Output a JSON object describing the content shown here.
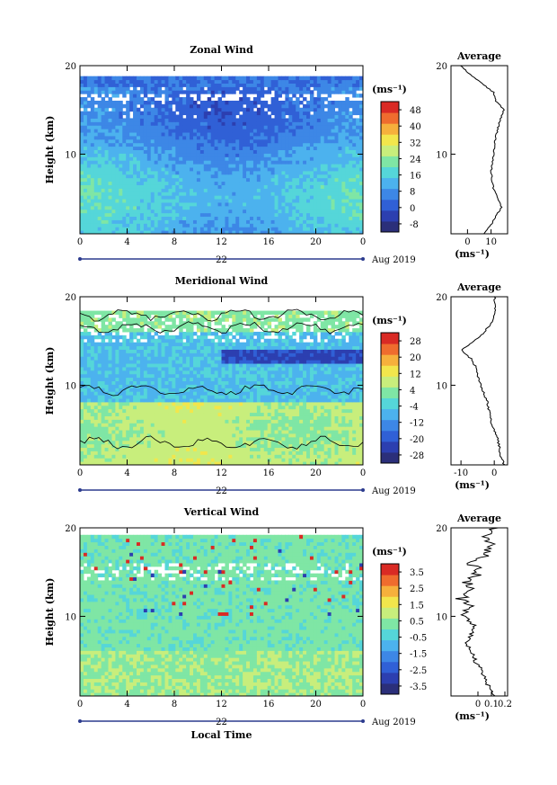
{
  "chart_data": [
    {
      "type": "heatmap",
      "title": "Zonal Wind",
      "ylabel": "Height (km)",
      "yticks": [
        "20",
        "10"
      ],
      "ylim": [
        1,
        20
      ],
      "xticks": [
        "0",
        "4",
        "8",
        "12",
        "16",
        "20",
        "0"
      ],
      "xlim": [
        0,
        24
      ],
      "day_label": "22",
      "date_label": "Aug 2019",
      "colorbar_unit": "(ms⁻¹)",
      "colorbar_ticks": [
        "48",
        "40",
        "32",
        "24",
        "16",
        "8",
        "0",
        "-8"
      ],
      "colorbar_range": [
        -12,
        52
      ],
      "colors": [
        "#2b2f7a",
        "#2c3fb0",
        "#3060d6",
        "#3d87e6",
        "#4cb2ee",
        "#55d6d9",
        "#7fe6a5",
        "#c8ee7c",
        "#f2e64c",
        "#f6b03c",
        "#ef6c2e",
        "#d92a24"
      ],
      "profile": {
        "title": "Average",
        "xlabel": "(ms⁻¹)",
        "xticks": [
          "0",
          "10"
        ],
        "xlim": [
          -7,
          17
        ],
        "yticks": [
          "20",
          "10"
        ],
        "heights": [
          1,
          2,
          3,
          4,
          5,
          6,
          7,
          8,
          9,
          10,
          11,
          12,
          13,
          14,
          15,
          16,
          17,
          18,
          19,
          20
        ],
        "values": [
          7,
          10,
          12,
          14.5,
          13,
          11,
          10.5,
          10,
          10.5,
          11,
          11.5,
          12,
          13,
          14,
          15.5,
          12,
          11,
          6,
          1,
          -3
        ]
      }
    },
    {
      "type": "heatmap",
      "title": "Meridional Wind",
      "ylabel": "Height (km)",
      "yticks": [
        "20",
        "10"
      ],
      "ylim": [
        1,
        20
      ],
      "xticks": [
        "0",
        "4",
        "8",
        "12",
        "16",
        "20",
        "0"
      ],
      "xlim": [
        0,
        24
      ],
      "day_label": "22",
      "date_label": "Aug 2019",
      "colorbar_unit": "(ms⁻¹)",
      "colorbar_ticks": [
        "28",
        "20",
        "12",
        "4",
        "-4",
        "-12",
        "-20",
        "-28"
      ],
      "colorbar_range": [
        -32,
        32
      ],
      "colors": [
        "#2b2f7a",
        "#2c3fb0",
        "#3060d6",
        "#3d87e6",
        "#4cb2ee",
        "#55d6d9",
        "#7fe6a5",
        "#c8ee7c",
        "#f2e64c",
        "#f6b03c",
        "#ef6c2e",
        "#d92a24"
      ],
      "profile": {
        "title": "Average",
        "xlabel": "(ms⁻¹)",
        "xticks": [
          "-10",
          "0"
        ],
        "xlim": [
          -13,
          4
        ],
        "yticks": [
          "20",
          "10"
        ],
        "heights": [
          1,
          2,
          3,
          4,
          5,
          6,
          7,
          8,
          9,
          10,
          11,
          12,
          13,
          14,
          15,
          16,
          17,
          18,
          19,
          20
        ],
        "values": [
          3,
          2,
          1.5,
          1,
          0,
          -1,
          -1.5,
          -2,
          -3,
          -4,
          -5,
          -5.5,
          -7,
          -10,
          -6,
          -3,
          -1,
          0,
          0.5,
          0
        ]
      }
    },
    {
      "type": "heatmap",
      "title": "Vertical Wind",
      "ylabel": "Height (km)",
      "yticks": [
        "20",
        "10"
      ],
      "ylim": [
        1,
        20
      ],
      "xticks": [
        "0",
        "4",
        "8",
        "12",
        "16",
        "20",
        "0"
      ],
      "xlim": [
        0,
        24
      ],
      "day_label": "22",
      "xlabel": "Local Time",
      "date_label": "Aug 2019",
      "colorbar_unit": "(ms⁻¹)",
      "colorbar_ticks": [
        "3.5",
        "2.5",
        "1.5",
        "0.5",
        "-0.5",
        "-1.5",
        "-2.5",
        "-3.5"
      ],
      "colorbar_range": [
        -4,
        4
      ],
      "colors": [
        "#2b2f7a",
        "#2c3fb0",
        "#3060d6",
        "#3d87e6",
        "#4cb2ee",
        "#55d6d9",
        "#7fe6a5",
        "#c8ee7c",
        "#f2e64c",
        "#f6b03c",
        "#ef6c2e",
        "#d92a24"
      ],
      "profile": {
        "title": "Average",
        "xlabel": "(ms⁻¹)",
        "xticks": [
          "0",
          "0.1",
          "0.2"
        ],
        "xlim": [
          -0.2,
          0.22
        ],
        "yticks": [
          "20",
          "10"
        ],
        "heights": [
          1,
          2,
          3,
          4,
          5,
          6,
          7,
          8,
          9,
          10,
          11,
          12,
          13,
          14,
          15,
          16,
          17,
          18,
          19,
          20
        ],
        "values": [
          0.12,
          0.08,
          0.05,
          0.02,
          -0.02,
          -0.05,
          -0.08,
          -0.05,
          -0.03,
          -0.1,
          -0.05,
          -0.12,
          -0.02,
          -0.08,
          0.02,
          -0.05,
          0.05,
          0.1,
          0.02,
          0.15
        ]
      }
    }
  ]
}
